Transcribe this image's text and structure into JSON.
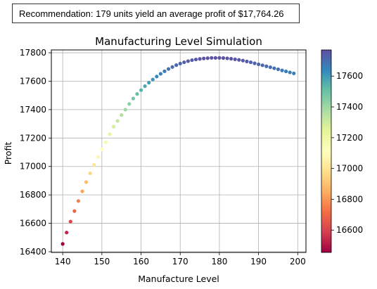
{
  "recommendation": {
    "text": "Recommendation: 179 units yield an average profit of $17,764.26"
  },
  "chart_data": {
    "type": "scatter",
    "title": "Manufacturing Level Simulation",
    "xlabel": "Manufacture Level",
    "ylabel": "Profit",
    "xlim": [
      137.1,
      202.1
    ],
    "ylim": [
      16395,
      17820
    ],
    "xticks": [
      140,
      150,
      160,
      170,
      180,
      190,
      200
    ],
    "yticks": [
      16400,
      16600,
      16800,
      17000,
      17200,
      17400,
      17600,
      17800
    ],
    "grid": true,
    "colormap": "Spectral",
    "colorbar": {
      "range": [
        16455,
        17770
      ],
      "ticks": [
        16600,
        16800,
        17000,
        17200,
        17400,
        17600
      ]
    },
    "points": [
      {
        "x": 140,
        "y": 16455
      },
      {
        "x": 141,
        "y": 16535
      },
      {
        "x": 142,
        "y": 16612
      },
      {
        "x": 143,
        "y": 16686
      },
      {
        "x": 144,
        "y": 16757
      },
      {
        "x": 145,
        "y": 16825
      },
      {
        "x": 146,
        "y": 16890
      },
      {
        "x": 147,
        "y": 16952
      },
      {
        "x": 148,
        "y": 17011
      },
      {
        "x": 149,
        "y": 17067
      },
      {
        "x": 150,
        "y": 17120
      },
      {
        "x": 151,
        "y": 17170
      },
      {
        "x": 152,
        "y": 17227
      },
      {
        "x": 153,
        "y": 17280
      },
      {
        "x": 154,
        "y": 17320
      },
      {
        "x": 155,
        "y": 17362
      },
      {
        "x": 156,
        "y": 17400
      },
      {
        "x": 157,
        "y": 17440
      },
      {
        "x": 158,
        "y": 17478
      },
      {
        "x": 159,
        "y": 17510
      },
      {
        "x": 160,
        "y": 17537
      },
      {
        "x": 161,
        "y": 17565
      },
      {
        "x": 162,
        "y": 17590
      },
      {
        "x": 163,
        "y": 17612
      },
      {
        "x": 164,
        "y": 17633
      },
      {
        "x": 165,
        "y": 17652
      },
      {
        "x": 166,
        "y": 17670
      },
      {
        "x": 167,
        "y": 17686
      },
      {
        "x": 168,
        "y": 17700
      },
      {
        "x": 169,
        "y": 17713
      },
      {
        "x": 170,
        "y": 17724
      },
      {
        "x": 171,
        "y": 17733
      },
      {
        "x": 172,
        "y": 17741
      },
      {
        "x": 173,
        "y": 17748
      },
      {
        "x": 174,
        "y": 17753
      },
      {
        "x": 175,
        "y": 17757
      },
      {
        "x": 176,
        "y": 17760
      },
      {
        "x": 177,
        "y": 17762
      },
      {
        "x": 178,
        "y": 17764
      },
      {
        "x": 179,
        "y": 17764
      },
      {
        "x": 180,
        "y": 17764
      },
      {
        "x": 181,
        "y": 17763
      },
      {
        "x": 182,
        "y": 17761
      },
      {
        "x": 183,
        "y": 17758
      },
      {
        "x": 184,
        "y": 17754
      },
      {
        "x": 185,
        "y": 17750
      },
      {
        "x": 186,
        "y": 17745
      },
      {
        "x": 187,
        "y": 17739
      },
      {
        "x": 188,
        "y": 17733
      },
      {
        "x": 189,
        "y": 17726
      },
      {
        "x": 190,
        "y": 17719
      },
      {
        "x": 191,
        "y": 17712
      },
      {
        "x": 192,
        "y": 17705
      },
      {
        "x": 193,
        "y": 17698
      },
      {
        "x": 194,
        "y": 17691
      },
      {
        "x": 195,
        "y": 17684
      },
      {
        "x": 196,
        "y": 17676
      },
      {
        "x": 197,
        "y": 17669
      },
      {
        "x": 198,
        "y": 17662
      },
      {
        "x": 199,
        "y": 17655
      }
    ]
  }
}
